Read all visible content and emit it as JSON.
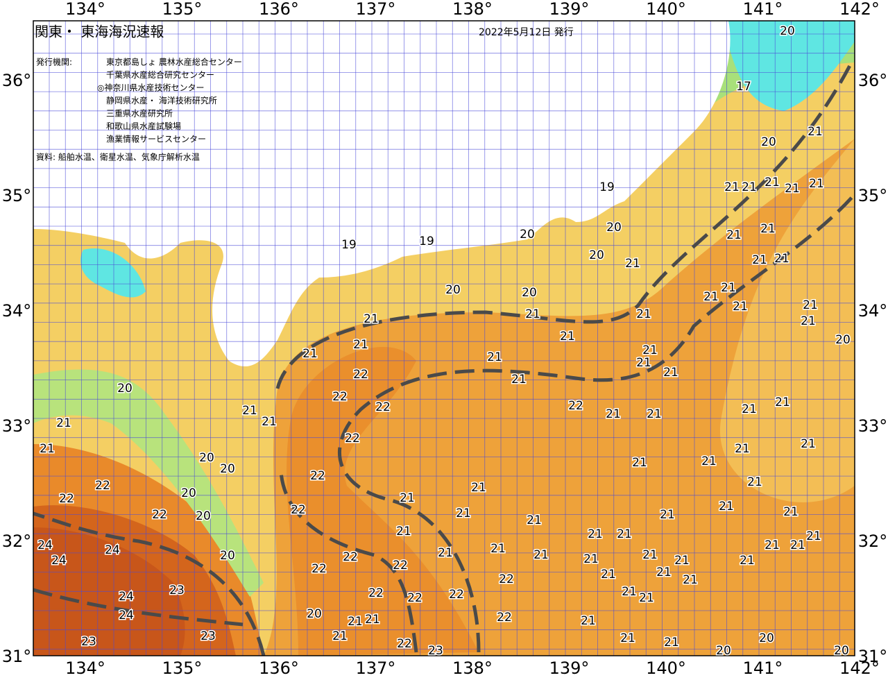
{
  "map": {
    "title": "関東・ 東海海況速報",
    "date": "2022年5月12日 発行",
    "issuer_label": "発行機関:",
    "issuers": [
      "東京都島しょ 農林水産総合センター",
      "千葉県水産総合研究センター",
      "◎神奈川県水産技術センター",
      "静岡県水産・ 海洋技術研究所",
      "三重県水産研究所",
      "和歌山県水産試験場",
      "漁業情報サービスセンター"
    ],
    "source": "資料: 船舶水温、衛星水温、気象庁解析水温",
    "lon_ticks": [
      "134°",
      "135°",
      "136°",
      "137°",
      "138°",
      "139°",
      "140°",
      "141°",
      "142°"
    ],
    "lat_ticks": [
      "36°",
      "35°",
      "34°",
      "33°",
      "32°",
      "31°"
    ],
    "isotherm_labels": [
      "20",
      "17",
      "20",
      "21",
      "19",
      "20",
      "20",
      "20",
      "21",
      "19",
      "19",
      "20",
      "20",
      "21",
      "21",
      "21",
      "21",
      "21",
      "21",
      "21",
      "22",
      "22",
      "22",
      "22",
      "22",
      "22",
      "22",
      "21",
      "21",
      "21",
      "21",
      "21",
      "20",
      "21",
      "21",
      "22",
      "22",
      "22",
      "24",
      "24",
      "24",
      "24",
      "24",
      "23",
      "23",
      "23",
      "20",
      "20",
      "20",
      "20",
      "20",
      "22",
      "22",
      "22",
      "22",
      "22",
      "22",
      "22",
      "22",
      "22",
      "23",
      "21",
      "21",
      "21",
      "21",
      "21",
      "21",
      "21",
      "21",
      "21",
      "21",
      "21",
      "21",
      "21",
      "21",
      "21",
      "21",
      "21",
      "21",
      "21",
      "21",
      "21",
      "21",
      "21",
      "21",
      "21",
      "21",
      "21",
      "21",
      "21",
      "21",
      "21",
      "21",
      "21",
      "21",
      "21",
      "21",
      "21",
      "20",
      "20",
      "20",
      "20",
      "21",
      "21",
      "21",
      "21",
      "21",
      "21",
      "21",
      "21",
      "21",
      "21",
      "21",
      "21",
      "21",
      "20",
      "21",
      "21",
      "21",
      "21",
      "21"
    ]
  }
}
